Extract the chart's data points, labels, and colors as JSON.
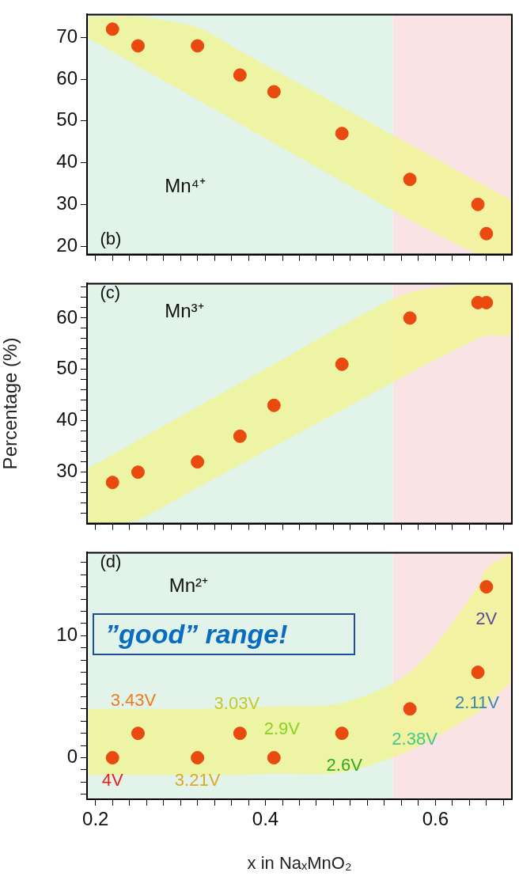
{
  "chart_data": [
    {
      "type": "scatter",
      "annotations": [
        "(b)",
        "Mn⁴⁺"
      ],
      "marker": "circle",
      "grid": false,
      "legend": false,
      "tick_labels": "y",
      "xlim": [
        0.19,
        0.69
      ],
      "ylim": [
        18,
        75.5
      ],
      "xticks": [
        0.2,
        {
          "value": 0.22,
          "label": null
        },
        {
          "value": 0.24,
          "label": null
        },
        {
          "value": 0.26,
          "label": null
        },
        {
          "value": 0.28,
          "label": null
        },
        {
          "value": 0.3,
          "label": null
        },
        {
          "value": 0.32,
          "label": null
        },
        {
          "value": 0.34,
          "label": null
        },
        {
          "value": 0.36,
          "label": null
        },
        {
          "value": 0.38,
          "label": null
        },
        0.4,
        {
          "value": 0.42,
          "label": null
        },
        {
          "value": 0.44,
          "label": null
        },
        {
          "value": 0.46,
          "label": null
        },
        {
          "value": 0.48,
          "label": null
        },
        {
          "value": 0.5,
          "label": null
        },
        {
          "value": 0.52,
          "label": null
        },
        {
          "value": 0.54,
          "label": null
        },
        {
          "value": 0.56,
          "label": null
        },
        {
          "value": 0.58,
          "label": null
        },
        0.6,
        {
          "value": 0.62,
          "label": null
        },
        {
          "value": 0.64,
          "label": null
        },
        {
          "value": 0.66,
          "label": null
        },
        {
          "value": 0.68,
          "label": null
        }
      ],
      "yticks": [
        20,
        30,
        40,
        50,
        60,
        70
      ],
      "bands": [
        {
          "axis": "x",
          "from": 0.19,
          "to": 0.55,
          "color": "#e2f3ea"
        },
        {
          "axis": "x",
          "from": 0.55,
          "to": 0.69,
          "color": "#f9e3e4"
        }
      ],
      "series": [
        {
          "color": "#e84a0f",
          "x": [
            0.19,
            0.22,
            0.25,
            0.32,
            0.37,
            0.41,
            0.49,
            0.57,
            0.65,
            0.66,
            0.69
          ],
          "values": [
            null,
            72,
            68,
            68,
            61,
            57,
            47,
            36,
            30,
            23,
            null
          ],
          "lower": [
            70,
            66.6,
            63.1,
            55.1,
            49.3,
            44.7,
            35.5,
            26.3,
            18,
            18,
            18
          ],
          "upper": [
            75,
            75,
            75,
            72.4,
            66.8,
            62.3,
            53.3,
            44.4,
            35.4,
            34.3,
            31
          ]
        }
      ]
    },
    {
      "type": "scatter",
      "ylabel": "Percentage (%)",
      "annotations": [
        "(c)",
        "Mn³⁺"
      ],
      "marker": "circle",
      "grid": false,
      "legend": false,
      "tick_labels": "y",
      "xlim": [
        0.19,
        0.69
      ],
      "ylim": [
        20,
        66.7
      ],
      "xticks": [
        0.2,
        {
          "value": 0.22,
          "label": null
        },
        {
          "value": 0.24,
          "label": null
        },
        {
          "value": 0.26,
          "label": null
        },
        {
          "value": 0.28,
          "label": null
        },
        {
          "value": 0.3,
          "label": null
        },
        {
          "value": 0.32,
          "label": null
        },
        {
          "value": 0.34,
          "label": null
        },
        {
          "value": 0.36,
          "label": null
        },
        {
          "value": 0.38,
          "label": null
        },
        0.4,
        {
          "value": 0.42,
          "label": null
        },
        {
          "value": 0.44,
          "label": null
        },
        {
          "value": 0.46,
          "label": null
        },
        {
          "value": 0.48,
          "label": null
        },
        {
          "value": 0.5,
          "label": null
        },
        {
          "value": 0.52,
          "label": null
        },
        {
          "value": 0.54,
          "label": null
        },
        {
          "value": 0.56,
          "label": null
        },
        {
          "value": 0.58,
          "label": null
        },
        0.6,
        {
          "value": 0.62,
          "label": null
        },
        {
          "value": 0.64,
          "label": null
        },
        {
          "value": 0.66,
          "label": null
        },
        {
          "value": 0.68,
          "label": null
        }
      ],
      "yticks": [
        {
          "value": 22,
          "label": null
        },
        {
          "value": 24,
          "label": null
        },
        {
          "value": 26,
          "label": null
        },
        {
          "value": 28,
          "label": null
        },
        30,
        {
          "value": 32,
          "label": null
        },
        {
          "value": 34,
          "label": null
        },
        {
          "value": 36,
          "label": null
        },
        {
          "value": 38,
          "label": null
        },
        40,
        {
          "value": 42,
          "label": null
        },
        {
          "value": 44,
          "label": null
        },
        {
          "value": 46,
          "label": null
        },
        {
          "value": 48,
          "label": null
        },
        50,
        {
          "value": 52,
          "label": null
        },
        {
          "value": 54,
          "label": null
        },
        {
          "value": 56,
          "label": null
        },
        {
          "value": 58,
          "label": null
        },
        60,
        {
          "value": 62,
          "label": null
        },
        {
          "value": 64,
          "label": null
        },
        {
          "value": 66,
          "label": null
        }
      ],
      "bands": [
        {
          "axis": "x",
          "from": 0.19,
          "to": 0.55,
          "color": "#e2f3ea"
        },
        {
          "axis": "x",
          "from": 0.55,
          "to": 0.69,
          "color": "#f9e3e4"
        }
      ],
      "series": [
        {
          "color": "#e84a0f",
          "x": [
            0.19,
            0.22,
            0.25,
            0.32,
            0.37,
            0.41,
            0.49,
            0.57,
            0.65,
            0.66,
            0.69
          ],
          "values": [
            null,
            28,
            30,
            32,
            37,
            43,
            51,
            60,
            63,
            63,
            null
          ],
          "lower": [
            20,
            20,
            20.7,
            27,
            31.4,
            35,
            42.1,
            49.3,
            56,
            56.5,
            56.5
          ],
          "upper": [
            30.6,
            33.4,
            36.2,
            42.7,
            47.3,
            51,
            58.5,
            65,
            66.7,
            66.7,
            66.7
          ]
        }
      ]
    },
    {
      "type": "scatter",
      "xlabel": "x in NaₓMnO₂",
      "annotations": [
        "(d)",
        "Mn²⁺",
        "”good” range!",
        {
          "text": "4V",
          "x": 0.22,
          "y": 0
        },
        {
          "text": "3.43V",
          "x": 0.25,
          "y": 2
        },
        {
          "text": "3.21V",
          "x": 0.32,
          "y": 0
        },
        {
          "text": "3.03V",
          "x": 0.37,
          "y": 2
        },
        {
          "text": "2.9V",
          "x": 0.41,
          "y": 0
        },
        {
          "text": "2.6V",
          "x": 0.49,
          "y": 2
        },
        {
          "text": "2.38V",
          "x": 0.57,
          "y": 4
        },
        {
          "text": "2.11V",
          "x": 0.65,
          "y": 7
        },
        {
          "text": "2V",
          "x": 0.66,
          "y": 14
        }
      ],
      "marker": "circle",
      "grid": false,
      "legend": false,
      "xlim": [
        0.19,
        0.69
      ],
      "ylim": [
        -3.4,
        16.8
      ],
      "xticks": [
        0.2,
        {
          "value": 0.22,
          "label": null
        },
        {
          "value": 0.24,
          "label": null
        },
        {
          "value": 0.26,
          "label": null
        },
        {
          "value": 0.28,
          "label": null
        },
        {
          "value": 0.3,
          "label": null
        },
        {
          "value": 0.32,
          "label": null
        },
        {
          "value": 0.34,
          "label": null
        },
        {
          "value": 0.36,
          "label": null
        },
        {
          "value": 0.38,
          "label": null
        },
        0.4,
        {
          "value": 0.42,
          "label": null
        },
        {
          "value": 0.44,
          "label": null
        },
        {
          "value": 0.46,
          "label": null
        },
        {
          "value": 0.48,
          "label": null
        },
        {
          "value": 0.5,
          "label": null
        },
        {
          "value": 0.52,
          "label": null
        },
        {
          "value": 0.54,
          "label": null
        },
        {
          "value": 0.56,
          "label": null
        },
        {
          "value": 0.58,
          "label": null
        },
        0.6,
        {
          "value": 0.62,
          "label": null
        },
        {
          "value": 0.64,
          "label": null
        },
        {
          "value": 0.66,
          "label": null
        },
        {
          "value": 0.68,
          "label": null
        }
      ],
      "yticks": [
        {
          "value": -3,
          "label": null
        },
        {
          "value": -2,
          "label": null
        },
        {
          "value": -1,
          "label": null
        },
        0,
        {
          "value": 1,
          "label": null
        },
        {
          "value": 2,
          "label": null
        },
        {
          "value": 3,
          "label": null
        },
        {
          "value": 4,
          "label": null
        },
        {
          "value": 5,
          "label": null
        },
        {
          "value": 6,
          "label": null
        },
        {
          "value": 7,
          "label": null
        },
        {
          "value": 8,
          "label": null
        },
        {
          "value": 9,
          "label": null
        },
        10,
        {
          "value": 11,
          "label": null
        },
        {
          "value": 12,
          "label": null
        },
        {
          "value": 13,
          "label": null
        },
        {
          "value": 14,
          "label": null
        },
        {
          "value": 15,
          "label": null
        },
        {
          "value": 16,
          "label": null
        }
      ],
      "bands": [
        {
          "axis": "x",
          "from": 0.19,
          "to": 0.55,
          "color": "#e2f3ea"
        },
        {
          "axis": "x",
          "from": 0.55,
          "to": 0.69,
          "color": "#f9e3e4"
        }
      ],
      "series": [
        {
          "color": "#e84a0f",
          "x": [
            0.19,
            0.22,
            0.25,
            0.32,
            0.37,
            0.41,
            0.49,
            0.57,
            0.65,
            0.66,
            0.69
          ],
          "values": [
            null,
            0,
            2,
            0,
            2,
            0,
            2,
            4,
            7,
            14,
            null
          ],
          "lower": [
            -1.4,
            -1.4,
            -1.4,
            -1.4,
            -1.4,
            -1.3,
            -1.2,
            0.6,
            3.7,
            4.3,
            6.3
          ],
          "upper": [
            4,
            4,
            4,
            4,
            4.1,
            4.2,
            4.5,
            7,
            14,
            15.5,
            16.8
          ]
        }
      ]
    }
  ]
}
